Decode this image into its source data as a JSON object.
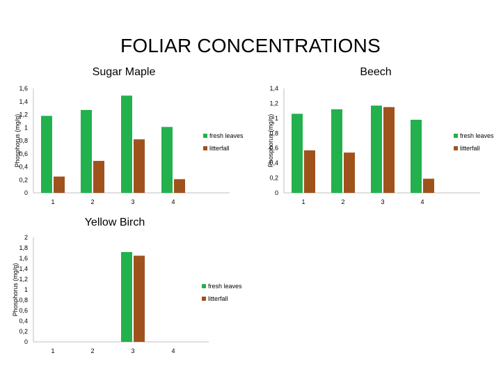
{
  "page": {
    "title": "FOLIAR CONCENTRATIONS"
  },
  "colors": {
    "fresh_leaves": "#22b14c",
    "litterfall": "#a0521d",
    "axis": "#bfbfbf"
  },
  "chart_data": [
    {
      "id": "sugar-maple",
      "type": "bar",
      "title": "Sugar Maple",
      "ylabel": "Phosphorus (mg/g)",
      "ylim": [
        0,
        1.6
      ],
      "yticks": [
        "0",
        "0,2",
        "0,4",
        "0,6",
        "0,8",
        "1",
        "1,2",
        "1,4",
        "1,6"
      ],
      "categories": [
        "1",
        "2",
        "3",
        "4"
      ],
      "series": [
        {
          "name": "fresh leaves",
          "values": [
            1.18,
            1.27,
            1.49,
            1.01
          ]
        },
        {
          "name": "litterfall",
          "values": [
            0.25,
            0.49,
            0.82,
            0.21
          ]
        }
      ],
      "legend": "right",
      "grid": false
    },
    {
      "id": "beech",
      "type": "bar",
      "title": "Beech",
      "ylabel": "Phosphorus (mg/g)",
      "ylim": [
        0,
        1.4
      ],
      "yticks": [
        "0",
        "0,2",
        "0,4",
        "0,6",
        "0,8",
        "1",
        "1,2",
        "1,4"
      ],
      "categories": [
        "1",
        "2",
        "3",
        "4"
      ],
      "series": [
        {
          "name": "fresh leaves",
          "values": [
            1.06,
            1.12,
            1.17,
            0.98
          ]
        },
        {
          "name": "litterfall",
          "values": [
            0.57,
            0.54,
            1.15,
            0.19
          ]
        }
      ],
      "legend": "right",
      "grid": false
    },
    {
      "id": "yellow-birch",
      "type": "bar",
      "title": "Yellow Birch",
      "ylabel": "Phosphorus (mg/g)",
      "ylim": [
        0,
        2
      ],
      "yticks": [
        "0",
        "0,2",
        "0,4",
        "0,6",
        "0,8",
        "1",
        "1,2",
        "1,4",
        "1,6",
        "1,8",
        "2"
      ],
      "categories": [
        "1",
        "2",
        "3",
        "4"
      ],
      "series": [
        {
          "name": "fresh leaves",
          "values": [
            null,
            null,
            1.72,
            null
          ]
        },
        {
          "name": "litterfall",
          "values": [
            null,
            null,
            1.65,
            null
          ]
        }
      ],
      "legend": "right",
      "grid": false
    }
  ]
}
